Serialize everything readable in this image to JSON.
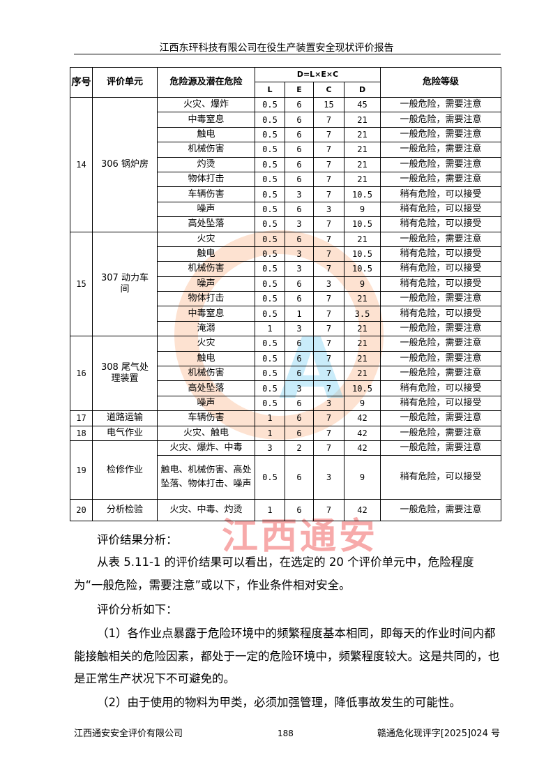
{
  "header": {
    "title": "江西东玶科技有限公司在役生产装置安全现状评价报告"
  },
  "table": {
    "headers": {
      "no": "序号",
      "unit": "评价单元",
      "hazard": "危险源及潜在危险",
      "formula": "D=L×E×C",
      "L": "L",
      "E": "E",
      "C": "C",
      "D": "D",
      "level": "危险等级"
    },
    "groups": [
      {
        "no": "14",
        "unit": "306 锅炉房",
        "rows": [
          [
            "火灾、爆炸",
            "0.5",
            "6",
            "15",
            "45",
            "一般危险，需要注意"
          ],
          [
            "中毒窒息",
            "0.5",
            "6",
            "7",
            "21",
            "一般危险，需要注意"
          ],
          [
            "触电",
            "0.5",
            "6",
            "7",
            "21",
            "一般危险，需要注意"
          ],
          [
            "机械伤害",
            "0.5",
            "6",
            "7",
            "21",
            "一般危险，需要注意"
          ],
          [
            "灼烫",
            "0.5",
            "6",
            "7",
            "21",
            "一般危险，需要注意"
          ],
          [
            "物体打击",
            "0.5",
            "6",
            "7",
            "21",
            "一般危险，需要注意"
          ],
          [
            "车辆伤害",
            "0.5",
            "3",
            "7",
            "10.5",
            "稍有危险，可以接受"
          ],
          [
            "噪声",
            "0.5",
            "6",
            "3",
            "9",
            "稍有危险，可以接受"
          ],
          [
            "高处坠落",
            "0.5",
            "3",
            "7",
            "10.5",
            "稍有危险，可以接受"
          ]
        ]
      },
      {
        "no": "15",
        "unit": "307 动力车间",
        "rows": [
          [
            "火灾",
            "0.5",
            "6",
            "7",
            "21",
            "一般危险，需要注意"
          ],
          [
            "触电",
            "0.5",
            "3",
            "7",
            "10.5",
            "稍有危险，可以接受"
          ],
          [
            "机械伤害",
            "0.5",
            "3",
            "7",
            "10.5",
            "稍有危险，可以接受"
          ],
          [
            "噪声",
            "0.5",
            "6",
            "3",
            "9",
            "稍有危险，可以接受"
          ],
          [
            "物体打击",
            "0.5",
            "6",
            "7",
            "21",
            "一般危险，需要注意"
          ],
          [
            "中毒窒息",
            "0.5",
            "1",
            "7",
            "3.5",
            "稍有危险，可以接受"
          ],
          [
            "淹溺",
            "1",
            "3",
            "7",
            "21",
            "一般危险，需要注意"
          ]
        ]
      },
      {
        "no": "16",
        "unit": "308 尾气处理装置",
        "rows": [
          [
            "火灾",
            "0.5",
            "6",
            "7",
            "21",
            "一般危险，需要注意"
          ],
          [
            "触电",
            "0.5",
            "6",
            "7",
            "21",
            "一般危险，需要注意"
          ],
          [
            "机械伤害",
            "0.5",
            "6",
            "7",
            "21",
            "一般危险，需要注意"
          ],
          [
            "高处坠落",
            "0.5",
            "3",
            "7",
            "10.5",
            "稍有危险，可以接受"
          ],
          [
            "噪声",
            "0.5",
            "6",
            "3",
            "9",
            "稍有危险，可以接受"
          ]
        ]
      },
      {
        "no": "17",
        "unit": "道路运输",
        "rows": [
          [
            "车辆伤害",
            "1",
            "6",
            "7",
            "42",
            "一般危险，需要注意"
          ]
        ]
      },
      {
        "no": "18",
        "unit": "电气作业",
        "rows": [
          [
            "火灾、触电",
            "1",
            "6",
            "7",
            "42",
            "一般危险，需要注意"
          ]
        ]
      },
      {
        "no": "19",
        "unit": "检修作业",
        "rows": [
          [
            "火灾、爆炸、中毒",
            "3",
            "2",
            "7",
            "42",
            "一般危险，需要注意"
          ],
          [
            "触电、机械伤害、高处坠落、物体打击、噪声",
            "0.5",
            "6",
            "3",
            "9",
            "稍有危险，可以接受"
          ]
        ]
      },
      {
        "no": "20",
        "unit": "分析检验",
        "rows": [
          [
            "火灾、中毒、灼烫",
            "1",
            "6",
            "7",
            "42",
            "一般危险，需要注意"
          ]
        ]
      }
    ]
  },
  "body": {
    "p1": "评价结果分析：",
    "p2": "从表 5.11-1 的评价结果可以看出，在选定的 20 个评价单元中，危险程度为“一般危险，需要注意”或以下，作业条件相对安全。",
    "p3": "评价分析如下：",
    "p4": "（1）各作业点暴露于危险环境中的频繁程度基本相同，即每天的作业时间内都能接触相关的危险因素，都处于一定的危险环境中，频繁程度较大。这是共同的，也是正常生产状况下不可避免的。",
    "p5": "（2）由于使用的物料为甲类，必须加强管理，降低事故发生的可能性。"
  },
  "footer": {
    "company": "江西通安安全评价有限公司",
    "page": "188",
    "code": "赣通危化现评字[2025]024 号"
  },
  "watermark": {
    "text": "江西通安",
    "logo": "TA",
    "colors": {
      "ring": "#f7b48a",
      "text": "#f08080",
      "logo": "#7fd3f0"
    }
  }
}
